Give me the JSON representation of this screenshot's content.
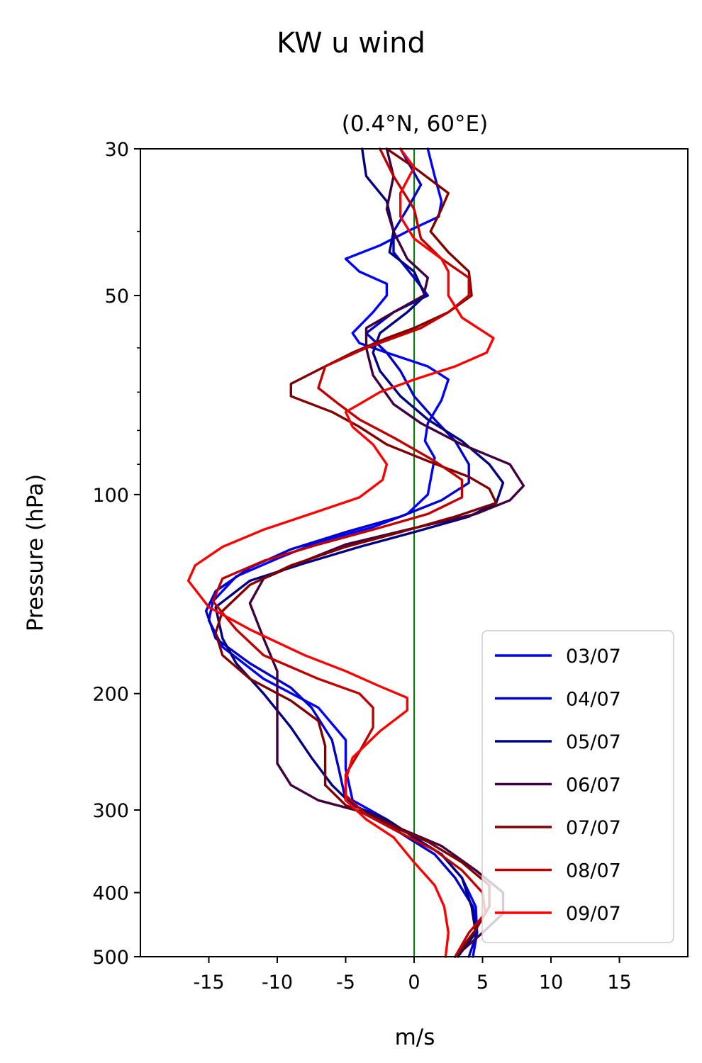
{
  "chart_data": {
    "type": "line",
    "title": "KW u wind",
    "subtitle": "(0.4°N, 60°E)",
    "xlabel": "m/s",
    "ylabel": "Pressure (hPa)",
    "xlim": [
      -20,
      20
    ],
    "ylim": [
      500,
      30
    ],
    "yscale": "log",
    "xticks": [
      -15,
      -10,
      -5,
      0,
      5,
      10,
      15
    ],
    "xtick_labels": [
      "-15",
      "-10",
      "-5",
      "0",
      "5",
      "10",
      "15"
    ],
    "yticks": [
      30,
      50,
      100,
      200,
      300,
      400,
      500
    ],
    "ytick_labels": [
      "30",
      "50",
      "100",
      "200",
      "300",
      "400",
      "500"
    ],
    "reference_line": {
      "x": 0,
      "color": "#008000"
    },
    "legend_position": "lower-right",
    "series": [
      {
        "name": "03/07",
        "color": "#0000ff",
        "points": [
          [
            1,
            30
          ],
          [
            1.5,
            33
          ],
          [
            2,
            36
          ],
          [
            1.8,
            38
          ],
          [
            -0.5,
            40
          ],
          [
            -2.5,
            42
          ],
          [
            -5,
            44
          ],
          [
            -4,
            46
          ],
          [
            -2,
            48
          ],
          [
            -2,
            50
          ],
          [
            -3,
            53
          ],
          [
            -4.5,
            57
          ],
          [
            -4,
            59
          ],
          [
            -2,
            61
          ],
          [
            1,
            64
          ],
          [
            2.5,
            67
          ],
          [
            2,
            72
          ],
          [
            1,
            78
          ],
          [
            0.8,
            83
          ],
          [
            1.5,
            88
          ],
          [
            1.2,
            95
          ],
          [
            1,
            100
          ],
          [
            -0.5,
            107
          ],
          [
            -3,
            112
          ],
          [
            -7,
            118
          ],
          [
            -10,
            125
          ],
          [
            -13,
            133
          ],
          [
            -14.7,
            145
          ],
          [
            -15,
            155
          ],
          [
            -14,
            170
          ],
          [
            -11,
            190
          ],
          [
            -7,
            210
          ],
          [
            -5,
            235
          ],
          [
            -5,
            260
          ],
          [
            -4.5,
            290
          ],
          [
            -2,
            310
          ],
          [
            0,
            330
          ],
          [
            2,
            350
          ],
          [
            3.5,
            380
          ],
          [
            4.5,
            420
          ],
          [
            4.6,
            460
          ],
          [
            4.3,
            500
          ]
        ]
      },
      {
        "name": "04/07",
        "color": "#0000cc",
        "points": [
          [
            -1,
            30
          ],
          [
            0.5,
            34
          ],
          [
            -0.5,
            37
          ],
          [
            -1.5,
            40
          ],
          [
            -1.5,
            43
          ],
          [
            0,
            47
          ],
          [
            1,
            50
          ],
          [
            -1.5,
            53
          ],
          [
            -3.5,
            57
          ],
          [
            -2,
            61
          ],
          [
            -1,
            65
          ],
          [
            0,
            71
          ],
          [
            1.5,
            77
          ],
          [
            3,
            83
          ],
          [
            4,
            90
          ],
          [
            4,
            96
          ],
          [
            2,
            102
          ],
          [
            -1,
            108
          ],
          [
            -5,
            114
          ],
          [
            -9,
            121
          ],
          [
            -12,
            129
          ],
          [
            -14.5,
            140
          ],
          [
            -15.2,
            150
          ],
          [
            -14.5,
            165
          ],
          [
            -12,
            180
          ],
          [
            -9,
            196
          ],
          [
            -7.5,
            210
          ],
          [
            -6,
            235
          ],
          [
            -5.5,
            260
          ],
          [
            -5,
            290
          ],
          [
            -2.5,
            310
          ],
          [
            -0.5,
            330
          ],
          [
            1.5,
            350
          ],
          [
            3,
            380
          ],
          [
            4.3,
            420
          ],
          [
            4.6,
            460
          ],
          [
            4,
            500
          ]
        ]
      },
      {
        "name": "05/07",
        "color": "#000080",
        "points": [
          [
            -3.8,
            30
          ],
          [
            -3.5,
            33
          ],
          [
            -2,
            36
          ],
          [
            -1.5,
            40
          ],
          [
            -1.8,
            43
          ],
          [
            0,
            46
          ],
          [
            0.8,
            50
          ],
          [
            -0.5,
            53
          ],
          [
            -2.5,
            57
          ],
          [
            -3,
            61
          ],
          [
            -2.5,
            65
          ],
          [
            -1,
            71
          ],
          [
            1,
            77
          ],
          [
            3.5,
            83
          ],
          [
            5.5,
            90
          ],
          [
            6.5,
            96
          ],
          [
            6,
            103
          ],
          [
            4,
            108
          ],
          [
            0,
            114
          ],
          [
            -4,
            120
          ],
          [
            -8,
            127
          ],
          [
            -12,
            135
          ],
          [
            -14.5,
            148
          ],
          [
            -14,
            165
          ],
          [
            -13,
            180
          ],
          [
            -11,
            200
          ],
          [
            -9,
            225
          ],
          [
            -7.5,
            250
          ],
          [
            -6,
            275
          ],
          [
            -4.5,
            295
          ],
          [
            -2,
            310
          ],
          [
            0,
            330
          ],
          [
            2,
            350
          ],
          [
            3.5,
            380
          ],
          [
            4.2,
            420
          ],
          [
            4.5,
            460
          ],
          [
            3.2,
            500
          ]
        ]
      },
      {
        "name": "06/07",
        "color": "#400040",
        "points": [
          [
            -2,
            30
          ],
          [
            -1.5,
            33
          ],
          [
            -2,
            37
          ],
          [
            -1.5,
            40
          ],
          [
            -0.5,
            44
          ],
          [
            1,
            47
          ],
          [
            0.7,
            50
          ],
          [
            -1.5,
            53
          ],
          [
            -3.5,
            56
          ],
          [
            -3.5,
            60
          ],
          [
            -3,
            66
          ],
          [
            -1.5,
            73
          ],
          [
            0.5,
            78
          ],
          [
            3.5,
            84
          ],
          [
            7,
            90
          ],
          [
            8,
            97
          ],
          [
            7,
            102
          ],
          [
            4.5,
            107
          ],
          [
            -0.5,
            113
          ],
          [
            -5,
            119
          ],
          [
            -8,
            126
          ],
          [
            -11,
            134
          ],
          [
            -12,
            146
          ],
          [
            -11,
            165
          ],
          [
            -10,
            185
          ],
          [
            -10,
            210
          ],
          [
            -10,
            240
          ],
          [
            -10,
            255
          ],
          [
            -9,
            275
          ],
          [
            -7,
            290
          ],
          [
            -3,
            305
          ],
          [
            -1,
            320
          ],
          [
            2,
            340
          ],
          [
            4.5,
            370
          ],
          [
            6.5,
            400
          ],
          [
            6.5,
            430
          ],
          [
            5,
            460
          ],
          [
            3,
            500
          ]
        ]
      },
      {
        "name": "07/07",
        "color": "#800000",
        "points": [
          [
            -2,
            30
          ],
          [
            0,
            32
          ],
          [
            2.5,
            35
          ],
          [
            2,
            37
          ],
          [
            1.2,
            40
          ],
          [
            2.5,
            43
          ],
          [
            4,
            46
          ],
          [
            4.2,
            50
          ],
          [
            2.5,
            53
          ],
          [
            0,
            56
          ],
          [
            -2,
            58
          ],
          [
            -4.5,
            61
          ],
          [
            -6.5,
            64
          ],
          [
            -9,
            68
          ],
          [
            -9,
            71
          ],
          [
            -6,
            75
          ],
          [
            -4,
            79
          ],
          [
            -2,
            84
          ],
          [
            1,
            89
          ],
          [
            4,
            94
          ],
          [
            5.5,
            98
          ],
          [
            6,
            103
          ],
          [
            3,
            108
          ],
          [
            -1,
            114
          ],
          [
            -5,
            120
          ],
          [
            -9,
            128
          ],
          [
            -12,
            137
          ],
          [
            -14,
            150
          ],
          [
            -14.5,
            162
          ],
          [
            -14,
            175
          ],
          [
            -12,
            190
          ],
          [
            -9,
            205
          ],
          [
            -7,
            220
          ],
          [
            -6.5,
            240
          ],
          [
            -6.5,
            260
          ],
          [
            -6.5,
            275
          ],
          [
            -5,
            295
          ],
          [
            -2,
            315
          ],
          [
            1,
            335
          ],
          [
            3.5,
            360
          ],
          [
            5.5,
            390
          ],
          [
            5.5,
            420
          ],
          [
            4.5,
            455
          ],
          [
            3,
            500
          ]
        ]
      },
      {
        "name": "08/07",
        "color": "#c00000",
        "points": [
          [
            -2.5,
            30
          ],
          [
            -1.5,
            33
          ],
          [
            0,
            37
          ],
          [
            0.5,
            41
          ],
          [
            2,
            44
          ],
          [
            4,
            47
          ],
          [
            4,
            50
          ],
          [
            2.5,
            53
          ],
          [
            0.5,
            56
          ],
          [
            -3.5,
            60
          ],
          [
            -6.5,
            64
          ],
          [
            -7,
            69
          ],
          [
            -5.5,
            73
          ],
          [
            -4,
            77
          ],
          [
            -1.5,
            82
          ],
          [
            1.5,
            89
          ],
          [
            3.5,
            95
          ],
          [
            3.5,
            101
          ],
          [
            1,
            107
          ],
          [
            -3,
            113
          ],
          [
            -7,
            119
          ],
          [
            -11,
            126
          ],
          [
            -14,
            134
          ],
          [
            -14.7,
            145
          ],
          [
            -13,
            160
          ],
          [
            -11,
            175
          ],
          [
            -7,
            190
          ],
          [
            -4,
            200
          ],
          [
            -3,
            210
          ],
          [
            -3,
            225
          ],
          [
            -4,
            245
          ],
          [
            -5,
            265
          ],
          [
            -5,
            285
          ],
          [
            -3.5,
            305
          ],
          [
            -1,
            325
          ],
          [
            1.5,
            345
          ],
          [
            3.5,
            370
          ],
          [
            5,
            400
          ],
          [
            5.2,
            430
          ],
          [
            4,
            460
          ],
          [
            3,
            500
          ]
        ]
      },
      {
        "name": "09/07",
        "color": "#ff0000",
        "points": [
          [
            -1,
            30
          ],
          [
            0,
            32
          ],
          [
            -1,
            35
          ],
          [
            -1,
            38
          ],
          [
            0,
            41
          ],
          [
            2,
            44
          ],
          [
            2.5,
            46
          ],
          [
            2.5,
            50
          ],
          [
            3.5,
            54
          ],
          [
            5.8,
            58
          ],
          [
            5.3,
            61
          ],
          [
            3,
            64
          ],
          [
            0,
            67
          ],
          [
            -2.5,
            70
          ],
          [
            -4,
            73
          ],
          [
            -5,
            75
          ],
          [
            -4.5,
            79
          ],
          [
            -3,
            84
          ],
          [
            -2,
            90
          ],
          [
            -2.3,
            95
          ],
          [
            -4,
            101
          ],
          [
            -7,
            106
          ],
          [
            -11,
            113
          ],
          [
            -14,
            120
          ],
          [
            -16,
            128
          ],
          [
            -16.5,
            135
          ],
          [
            -15,
            148
          ],
          [
            -12,
            160
          ],
          [
            -8,
            175
          ],
          [
            -5,
            185
          ],
          [
            -2.5,
            195
          ],
          [
            -0.5,
            203
          ],
          [
            -0.5,
            212
          ],
          [
            -2.5,
            228
          ],
          [
            -4.5,
            250
          ],
          [
            -5,
            270
          ],
          [
            -5,
            290
          ],
          [
            -3.5,
            310
          ],
          [
            -1.5,
            330
          ],
          [
            0,
            360
          ],
          [
            1.5,
            390
          ],
          [
            2.2,
            420
          ],
          [
            2.5,
            460
          ],
          [
            2.3,
            500
          ]
        ]
      }
    ]
  }
}
